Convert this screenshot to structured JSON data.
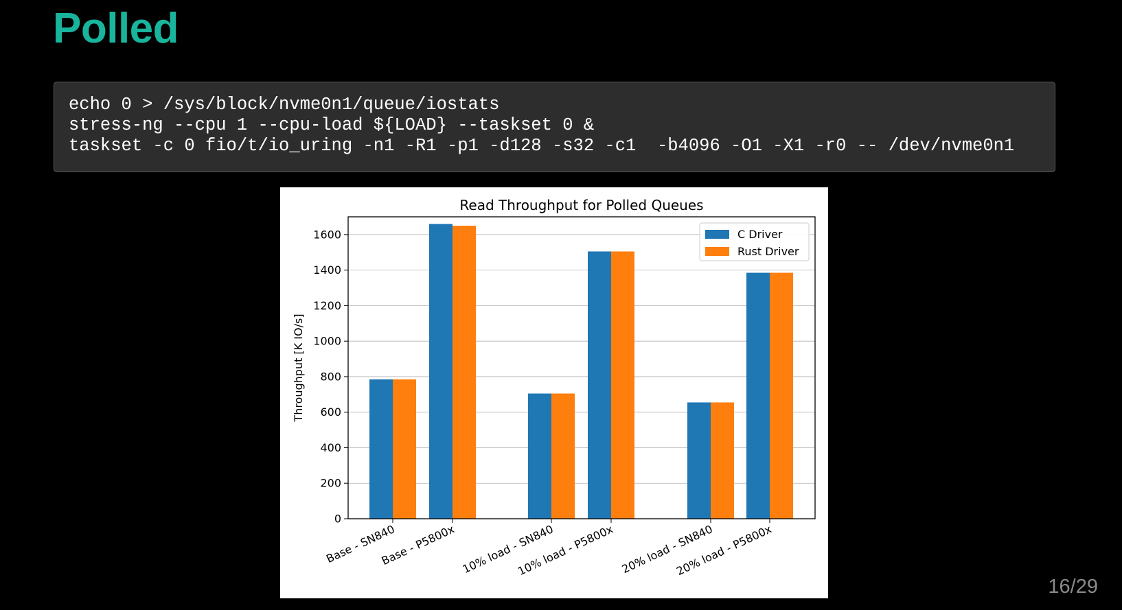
{
  "slide": {
    "title": "Polled",
    "page_number": "16/29"
  },
  "code": {
    "lines": [
      "echo 0 > /sys/block/nvme0n1/queue/iostats",
      "stress-ng --cpu 1 --cpu-load ${LOAD} --taskset 0 &",
      "taskset -c 0 fio/t/io_uring -n1 -R1 -p1 -d128 -s32 -c1  -b4096 -O1 -X1 -r0 -- /dev/nvme0n1"
    ]
  },
  "chart_data": {
    "type": "bar",
    "title": "Read Throughput for Polled Queues",
    "xlabel": "",
    "ylabel": "Throughput [K IO/s]",
    "categories": [
      "Base - SN840",
      "Base - P5800x",
      "10% load - SN840",
      "10% load - P5800x",
      "20% load - SN840",
      "20% load - P5800x"
    ],
    "series": [
      {
        "name": "C Driver",
        "color": "#1f77b4",
        "values": [
          785,
          1660,
          705,
          1505,
          655,
          1385
        ]
      },
      {
        "name": "Rust Driver",
        "color": "#ff7f0e",
        "values": [
          785,
          1650,
          705,
          1505,
          655,
          1385
        ]
      }
    ],
    "ylim": [
      0,
      1700
    ],
    "yticks": [
      0,
      200,
      400,
      600,
      800,
      1000,
      1200,
      1400,
      1600
    ],
    "grid": "horizontal",
    "legend_position": "top-right"
  }
}
